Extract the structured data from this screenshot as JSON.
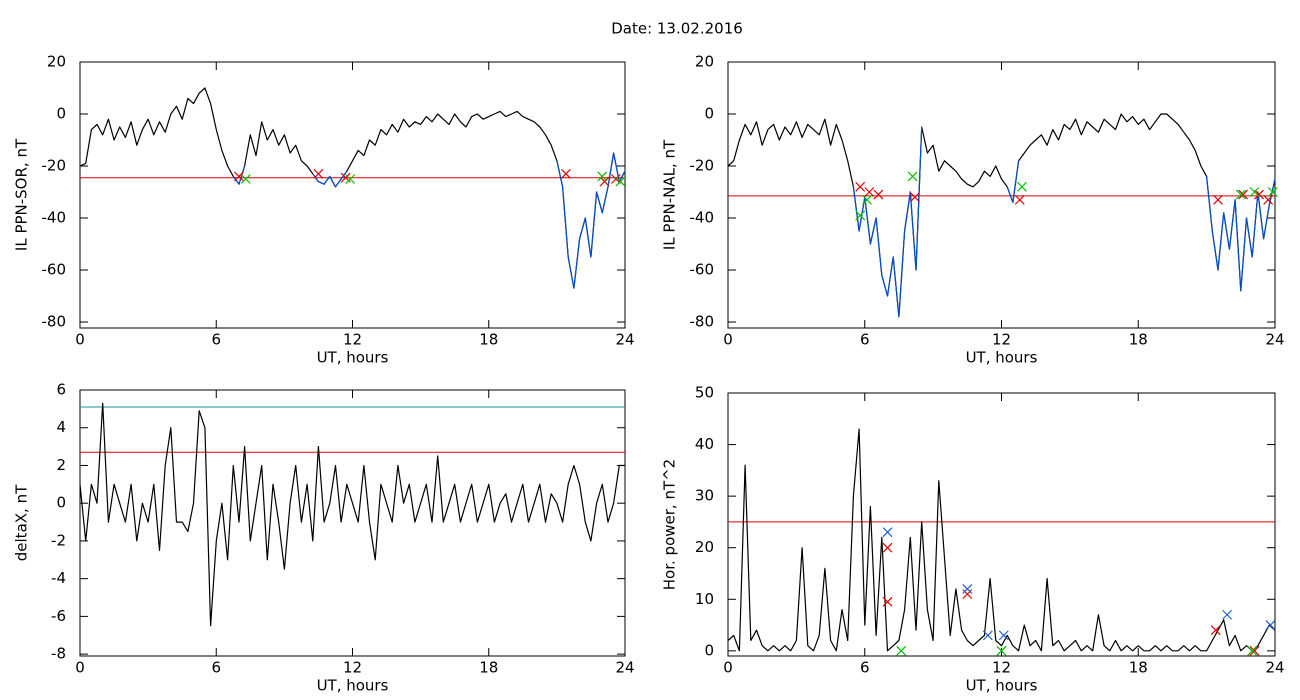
{
  "title": "Date:  13.02.2016",
  "chart_data": [
    {
      "type": "line",
      "ylabel": "IL PPN-SOR, nT",
      "xlabel": "UT, hours",
      "xlim": [
        0,
        24
      ],
      "xticks": [
        0,
        6,
        12,
        18,
        24
      ],
      "ylim": [
        -82.3,
        20
      ],
      "yticks": [
        -80,
        -60,
        -40,
        -20,
        0,
        20
      ],
      "x": [
        0,
        0.25,
        0.5,
        0.75,
        1,
        1.25,
        1.5,
        1.75,
        2,
        2.25,
        2.5,
        2.75,
        3,
        3.25,
        3.5,
        3.75,
        4,
        4.25,
        4.5,
        4.75,
        5,
        5.25,
        5.5,
        5.75,
        6,
        6.25,
        6.5,
        6.75,
        7,
        7.25,
        7.5,
        7.75,
        8,
        8.25,
        8.5,
        8.75,
        9,
        9.25,
        9.5,
        9.75,
        10,
        10.25,
        10.5,
        10.75,
        11,
        11.25,
        11.5,
        11.75,
        12,
        12.25,
        12.5,
        12.75,
        13,
        13.25,
        13.5,
        13.75,
        14,
        14.25,
        14.5,
        14.75,
        15,
        15.25,
        15.5,
        15.75,
        16,
        16.25,
        16.5,
        16.75,
        17,
        17.25,
        17.5,
        17.75,
        18,
        18.25,
        18.5,
        18.75,
        19,
        19.25,
        19.5,
        19.75,
        20,
        20.25,
        20.5,
        20.75,
        21,
        21.25,
        21.5,
        21.75,
        22,
        22.25,
        22.5,
        22.75,
        23,
        23.25,
        23.5,
        23.75,
        24
      ],
      "series": [
        {
          "color": "#000000",
          "values": [
            -20,
            -19,
            -6,
            -4,
            -8,
            -2,
            -10,
            -5,
            -9,
            -3,
            -12,
            -6,
            -2,
            -8,
            -3,
            -7,
            0,
            3,
            -2,
            6,
            4,
            8,
            10,
            4,
            -6,
            -14,
            -20,
            -24,
            -27,
            -20,
            -8,
            -16,
            -3,
            -10,
            -6,
            -12,
            -8,
            -15,
            -12,
            -18,
            -20,
            -23,
            -26,
            -27,
            -24,
            -28,
            -25,
            -22,
            -18,
            -14,
            -16,
            -10,
            -12,
            -6,
            -8,
            -4,
            -7,
            -2,
            -5,
            -3,
            -4,
            -1,
            -3,
            0,
            -2,
            -4,
            0,
            -3,
            -5,
            -1,
            0,
            -2,
            -1,
            0,
            1,
            -1,
            0,
            1,
            -1,
            -2,
            -3,
            -5,
            -8,
            -12,
            -18,
            -28,
            -55,
            -67,
            -48,
            -40,
            -55,
            -30,
            -38,
            -28,
            -15,
            -26,
            -22
          ]
        },
        {
          "color": "#0050d0",
          "x": [
            6.75,
            7,
            7.25
          ],
          "values": [
            -24,
            -27,
            -20
          ]
        },
        {
          "color": "#0050d0",
          "x": [
            10.25,
            10.5,
            10.75,
            11,
            11.25,
            11.5,
            11.75
          ],
          "values": [
            -23,
            -26,
            -27,
            -24,
            -28,
            -25,
            -22
          ]
        },
        {
          "color": "#0050d0",
          "x": [
            21,
            21.25,
            21.5,
            21.75,
            22,
            22.25,
            22.5,
            22.75,
            23,
            23.25,
            23.5,
            23.75,
            24
          ],
          "values": [
            -18,
            -28,
            -55,
            -67,
            -48,
            -40,
            -55,
            -30,
            -38,
            -28,
            -15,
            -26,
            -22
          ]
        }
      ],
      "hlines": [
        {
          "value": -24.5,
          "color": "#e00000"
        }
      ],
      "markers": [
        {
          "color": "#e00000",
          "x": [
            7.0,
            10.5,
            11.7,
            21.4,
            23.1,
            23.6
          ],
          "values": [
            -24,
            -23,
            -24.5,
            -23,
            -26,
            -25
          ]
        },
        {
          "color": "#00c000",
          "x": [
            7.3,
            11.9,
            23.0,
            23.8
          ],
          "values": [
            -25,
            -25,
            -24,
            -26
          ]
        }
      ]
    },
    {
      "type": "line",
      "ylabel": "IL PPN-NAL, nT",
      "xlabel": "UT, hours",
      "xlim": [
        0,
        24
      ],
      "xticks": [
        0,
        6,
        12,
        18,
        24
      ],
      "ylim": [
        -82.3,
        20
      ],
      "yticks": [
        -80,
        -60,
        -40,
        -20,
        0,
        20
      ],
      "x": [
        0,
        0.25,
        0.5,
        0.75,
        1,
        1.25,
        1.5,
        1.75,
        2,
        2.25,
        2.5,
        2.75,
        3,
        3.25,
        3.5,
        3.75,
        4,
        4.25,
        4.5,
        4.75,
        5,
        5.25,
        5.5,
        5.75,
        6,
        6.25,
        6.5,
        6.75,
        7,
        7.25,
        7.5,
        7.75,
        8,
        8.25,
        8.5,
        8.75,
        9,
        9.25,
        9.5,
        9.75,
        10,
        10.25,
        10.5,
        10.75,
        11,
        11.25,
        11.5,
        11.75,
        12,
        12.25,
        12.5,
        12.75,
        13,
        13.25,
        13.5,
        13.75,
        14,
        14.25,
        14.5,
        14.75,
        15,
        15.25,
        15.5,
        15.75,
        16,
        16.25,
        16.5,
        16.75,
        17,
        17.25,
        17.5,
        17.75,
        18,
        18.25,
        18.5,
        18.75,
        19,
        19.25,
        19.5,
        19.75,
        20,
        20.25,
        20.5,
        20.75,
        21,
        21.25,
        21.5,
        21.75,
        22,
        22.25,
        22.5,
        22.75,
        23,
        23.25,
        23.5,
        23.75,
        24
      ],
      "series": [
        {
          "color": "#000000",
          "values": [
            -20,
            -18,
            -10,
            -4,
            -8,
            -3,
            -12,
            -6,
            -4,
            -10,
            -5,
            -8,
            -3,
            -9,
            -4,
            -6,
            -8,
            -2,
            -12,
            -4,
            -10,
            -18,
            -28,
            -45,
            -32,
            -50,
            -40,
            -62,
            -70,
            -55,
            -78,
            -45,
            -30,
            -60,
            -5,
            -15,
            -12,
            -22,
            -18,
            -20,
            -22,
            -25,
            -27,
            -28,
            -26,
            -22,
            -24,
            -20,
            -25,
            -28,
            -34,
            -18,
            -15,
            -12,
            -10,
            -8,
            -12,
            -6,
            -10,
            -4,
            -6,
            -2,
            -8,
            -3,
            -5,
            -7,
            -2,
            -4,
            -6,
            0,
            -3,
            -1,
            -4,
            -2,
            -6,
            -3,
            0,
            0,
            -2,
            -4,
            -7,
            -10,
            -14,
            -20,
            -24,
            -45,
            -60,
            -38,
            -52,
            -33,
            -68,
            -40,
            -55,
            -30,
            -48,
            -35,
            -25
          ]
        },
        {
          "color": "#0050d0",
          "x": [
            5.5,
            5.75,
            6,
            6.25,
            6.5,
            6.75,
            7,
            7.25,
            7.5,
            7.75,
            8,
            8.25,
            8.5
          ],
          "values": [
            -28,
            -45,
            -32,
            -50,
            -40,
            -62,
            -70,
            -55,
            -78,
            -45,
            -30,
            -60,
            -5
          ]
        },
        {
          "color": "#0050d0",
          "x": [
            12.25,
            12.5,
            12.75
          ],
          "values": [
            -28,
            -34,
            -18
          ]
        },
        {
          "color": "#0050d0",
          "x": [
            21,
            21.25,
            21.5,
            21.75,
            22,
            22.25,
            22.5,
            22.75,
            23,
            23.25,
            23.5,
            23.75,
            24
          ],
          "values": [
            -24,
            -45,
            -60,
            -38,
            -52,
            -33,
            -68,
            -40,
            -55,
            -30,
            -48,
            -35,
            -25
          ]
        }
      ],
      "hlines": [
        {
          "value": -31.5,
          "color": "#e00000"
        }
      ],
      "markers": [
        {
          "color": "#e00000",
          "x": [
            5.8,
            6.2,
            6.6,
            8.2,
            12.8,
            21.5,
            22.6,
            23.3,
            23.7
          ],
          "values": [
            -28,
            -30,
            -31,
            -32,
            -33,
            -33,
            -31,
            -31,
            -33
          ]
        },
        {
          "color": "#00c000",
          "x": [
            5.8,
            6.1,
            8.1,
            12.9,
            22.5,
            23.1,
            23.9
          ],
          "values": [
            -39,
            -33,
            -24,
            -28,
            -31,
            -30,
            -30
          ]
        }
      ]
    },
    {
      "type": "line",
      "ylabel": "deltaX, nT",
      "xlabel": "UT, hours",
      "xlim": [
        0,
        24
      ],
      "xticks": [
        0,
        6,
        12,
        18,
        24
      ],
      "ylim": [
        -8.1,
        6
      ],
      "yticks": [
        -8,
        -6,
        -4,
        -2,
        0,
        2,
        4,
        6
      ],
      "x": [
        0,
        0.25,
        0.5,
        0.75,
        1,
        1.25,
        1.5,
        1.75,
        2,
        2.25,
        2.5,
        2.75,
        3,
        3.25,
        3.5,
        3.75,
        4,
        4.25,
        4.5,
        4.75,
        5,
        5.25,
        5.5,
        5.75,
        6,
        6.25,
        6.5,
        6.75,
        7,
        7.25,
        7.5,
        7.75,
        8,
        8.25,
        8.5,
        8.75,
        9,
        9.25,
        9.5,
        9.75,
        10,
        10.25,
        10.5,
        10.75,
        11,
        11.25,
        11.5,
        11.75,
        12,
        12.25,
        12.5,
        12.75,
        13,
        13.25,
        13.5,
        13.75,
        14,
        14.25,
        14.5,
        14.75,
        15,
        15.25,
        15.5,
        15.75,
        16,
        16.25,
        16.5,
        16.75,
        17,
        17.25,
        17.5,
        17.75,
        18,
        18.25,
        18.5,
        18.75,
        19,
        19.25,
        19.5,
        19.75,
        20,
        20.25,
        20.5,
        20.75,
        21,
        21.25,
        21.5,
        21.75,
        22,
        22.25,
        22.5,
        22.75,
        23,
        23.25,
        23.5,
        23.75,
        24
      ],
      "series": [
        {
          "color": "#000000",
          "values": [
            1,
            -2,
            1,
            0,
            5.3,
            -1,
            1,
            0,
            -1,
            1,
            -2,
            0,
            -1,
            1,
            -2.5,
            2,
            4,
            -1,
            -1,
            -1.5,
            0,
            4.9,
            4,
            -6.5,
            -2,
            0,
            -3,
            2,
            -1,
            3,
            -2,
            0,
            2,
            -3,
            1,
            -1,
            -3.5,
            0,
            2,
            -1,
            1,
            -2,
            3,
            -1,
            0,
            2,
            -1,
            1,
            0,
            -1,
            2,
            -1,
            -3,
            1,
            0,
            -1,
            2,
            0,
            1,
            -1,
            0,
            1,
            -1,
            2.5,
            -1,
            0,
            1,
            -1,
            0,
            1,
            -1,
            0,
            1,
            -1,
            0,
            0.5,
            -1,
            0,
            1,
            -1,
            0,
            1,
            -1,
            0.5,
            0,
            -1,
            1,
            2,
            1,
            -1,
            -2,
            0,
            1,
            -1,
            0,
            2,
            2
          ]
        }
      ],
      "hlines": [
        {
          "value": 2.7,
          "color": "#e00000"
        },
        {
          "value": 5.1,
          "color": "#1a9090"
        }
      ],
      "markers": []
    },
    {
      "type": "line",
      "ylabel": "Hor. power, nT^2",
      "xlabel": "UT, hours",
      "xlim": [
        0,
        24
      ],
      "xticks": [
        0,
        6,
        12,
        18,
        24
      ],
      "ylim": [
        -1,
        50
      ],
      "yticks": [
        0,
        10,
        20,
        30,
        40,
        50
      ],
      "x": [
        0,
        0.25,
        0.5,
        0.75,
        1,
        1.25,
        1.5,
        1.75,
        2,
        2.25,
        2.5,
        2.75,
        3,
        3.25,
        3.5,
        3.75,
        4,
        4.25,
        4.5,
        4.75,
        5,
        5.25,
        5.5,
        5.75,
        6,
        6.25,
        6.5,
        6.75,
        7,
        7.25,
        7.5,
        7.75,
        8,
        8.25,
        8.5,
        8.75,
        9,
        9.25,
        9.5,
        9.75,
        10,
        10.25,
        10.5,
        10.75,
        11,
        11.25,
        11.5,
        11.75,
        12,
        12.25,
        12.5,
        12.75,
        13,
        13.25,
        13.5,
        13.75,
        14,
        14.25,
        14.5,
        14.75,
        15,
        15.25,
        15.5,
        15.75,
        16,
        16.25,
        16.5,
        16.75,
        17,
        17.25,
        17.5,
        17.75,
        18,
        18.25,
        18.5,
        18.75,
        19,
        19.25,
        19.5,
        19.75,
        20,
        20.25,
        20.5,
        20.75,
        21,
        21.25,
        21.5,
        21.75,
        22,
        22.25,
        22.5,
        22.75,
        23,
        23.25,
        23.5,
        23.75,
        24
      ],
      "series": [
        {
          "color": "#000000",
          "values": [
            2,
            3,
            0,
            36,
            2,
            4,
            1,
            0,
            1,
            0,
            1,
            0,
            2,
            20,
            1,
            0,
            3,
            16,
            2,
            0,
            8,
            2,
            30,
            43,
            5,
            28,
            3,
            22,
            0,
            1,
            2,
            8,
            22,
            4,
            25,
            8,
            2,
            33,
            18,
            3,
            12,
            4,
            2,
            1,
            2,
            3,
            14,
            2,
            1,
            3,
            1,
            0,
            5,
            1,
            2,
            0,
            14,
            1,
            2,
            0,
            1,
            2,
            0,
            1,
            0,
            7,
            1,
            0,
            2,
            0,
            1,
            0,
            1,
            0,
            0,
            1,
            0,
            1,
            0,
            0,
            1,
            0,
            1,
            0,
            0,
            2,
            4,
            6,
            1,
            3,
            0,
            1,
            0,
            1,
            3,
            5,
            4
          ]
        }
      ],
      "hlines": [
        {
          "value": 25,
          "color": "#e00000"
        }
      ],
      "markers": [
        {
          "color": "#e00000",
          "x": [
            7.0,
            7.0,
            10.5,
            21.4,
            23.1
          ],
          "values": [
            9.5,
            20,
            11,
            4,
            0
          ]
        },
        {
          "color": "#2060d0",
          "x": [
            7.0,
            10.5,
            11.4,
            12.1,
            21.9,
            23.8
          ],
          "values": [
            23,
            12,
            3,
            3,
            7,
            5
          ]
        },
        {
          "color": "#00c000",
          "x": [
            7.6,
            12.0,
            23.0
          ],
          "values": [
            0,
            0,
            0
          ]
        }
      ]
    }
  ]
}
